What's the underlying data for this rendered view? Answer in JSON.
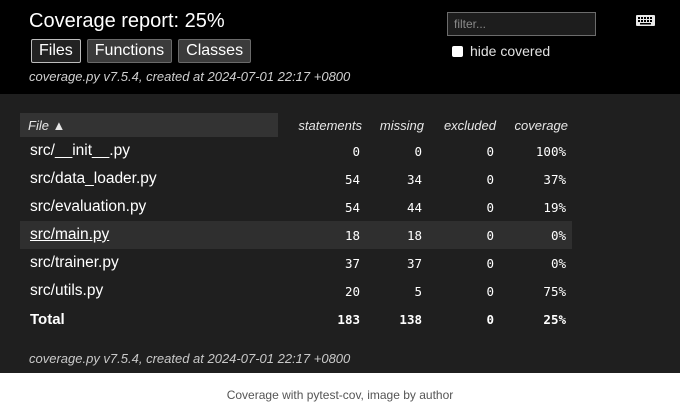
{
  "report": {
    "title": "Coverage report: 25%",
    "tabs": [
      "Files",
      "Functions",
      "Classes"
    ],
    "created": "coverage.py v7.5.4, created at 2024-07-01 22:17 +0800",
    "filter_placeholder": "filter...",
    "hide_covered_label": "hide covered",
    "keyboard_icon": "keyboard-icon"
  },
  "table": {
    "headers": {
      "file": "File ▲",
      "statements": "statements",
      "missing": "missing",
      "excluded": "excluded",
      "coverage": "coverage"
    },
    "rows": [
      {
        "file": "src/__init__.py",
        "statements": "0",
        "missing": "0",
        "excluded": "0",
        "coverage": "100%"
      },
      {
        "file": "src/data_loader.py",
        "statements": "54",
        "missing": "34",
        "excluded": "0",
        "coverage": "37%"
      },
      {
        "file": "src/evaluation.py",
        "statements": "54",
        "missing": "44",
        "excluded": "0",
        "coverage": "19%"
      },
      {
        "file": "src/main.py",
        "statements": "18",
        "missing": "18",
        "excluded": "0",
        "coverage": "0%"
      },
      {
        "file": "src/trainer.py",
        "statements": "37",
        "missing": "37",
        "excluded": "0",
        "coverage": "0%"
      },
      {
        "file": "src/utils.py",
        "statements": "20",
        "missing": "5",
        "excluded": "0",
        "coverage": "75%"
      }
    ],
    "total": {
      "file": "Total",
      "statements": "183",
      "missing": "138",
      "excluded": "0",
      "coverage": "25%"
    }
  },
  "footer_created": "coverage.py v7.5.4, created at 2024-07-01 22:17 +0800",
  "caption": "Coverage with pytest-cov, image by author"
}
